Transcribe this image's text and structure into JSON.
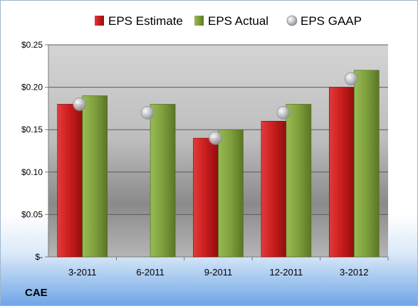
{
  "ticker": "CAE",
  "chart_data": {
    "type": "bar",
    "categories": [
      "3-2011",
      "6-2011",
      "9-2011",
      "12-2011",
      "3-2012"
    ],
    "series": [
      {
        "name": "EPS Estimate",
        "values": [
          0.18,
          null,
          0.14,
          0.16,
          0.2
        ],
        "color": "#c91c1c"
      },
      {
        "name": "EPS Actual",
        "values": [
          0.19,
          0.18,
          0.15,
          0.18,
          0.22
        ],
        "color": "#7e9f3c"
      },
      {
        "name": "EPS GAAP",
        "type": "marker",
        "values": [
          0.18,
          0.17,
          0.14,
          0.17,
          0.21
        ],
        "color": "#b8bcc2"
      }
    ],
    "y_ticks": [
      {
        "value": 0,
        "label": "$-"
      },
      {
        "value": 0.05,
        "label": "$0.05"
      },
      {
        "value": 0.1,
        "label": "$0.10"
      },
      {
        "value": 0.15,
        "label": "$0.15"
      },
      {
        "value": 0.2,
        "label": "$0.20"
      },
      {
        "value": 0.25,
        "label": "$0.25"
      }
    ],
    "ylim": [
      0,
      0.25
    ],
    "grid": true,
    "legend_position": "top"
  }
}
